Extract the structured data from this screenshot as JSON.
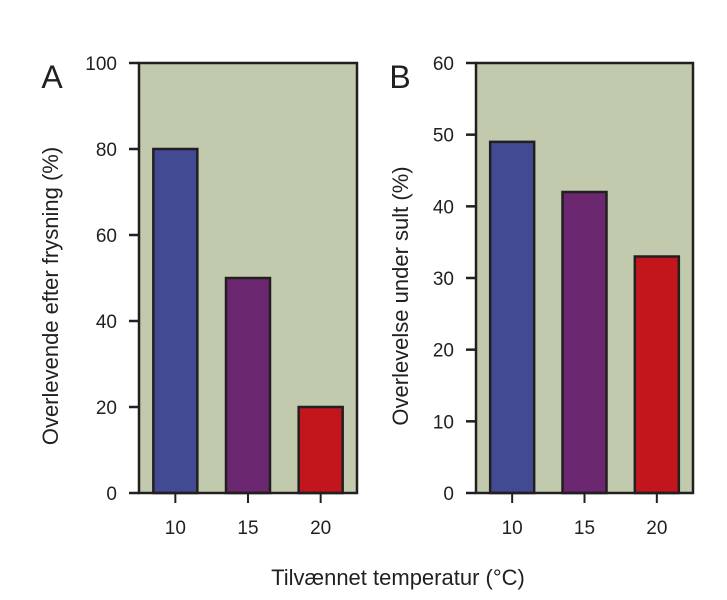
{
  "chart_data": [
    {
      "type": "bar",
      "panel_label": "A",
      "title": "",
      "categories": [
        "10",
        "15",
        "20"
      ],
      "values": [
        80,
        50,
        20
      ],
      "bar_colors": [
        "#414a93",
        "#6b2770",
        "#c3161c"
      ],
      "xlabel": "Tilvænnet temperatur (°C)",
      "ylabel": "Overlevende efter frysning (%)",
      "ylim": [
        0,
        100
      ],
      "yticks": [
        "0",
        "20",
        "40",
        "60",
        "80",
        "100"
      ],
      "ytick_values": [
        0,
        20,
        40,
        60,
        80,
        100
      ],
      "grid": false,
      "background": "#c1caad"
    },
    {
      "type": "bar",
      "panel_label": "B",
      "title": "",
      "categories": [
        "10",
        "15",
        "20"
      ],
      "values": [
        49,
        42,
        33
      ],
      "bar_colors": [
        "#414a93",
        "#6b2770",
        "#c3161c"
      ],
      "xlabel": "Tilvænnet temperatur (°C)",
      "ylabel": "Overlevelse under sult (%)",
      "ylim": [
        0,
        60
      ],
      "yticks": [
        "0",
        "10",
        "20",
        "30",
        "40",
        "50",
        "60"
      ],
      "ytick_values": [
        0,
        10,
        20,
        30,
        40,
        50,
        60
      ],
      "grid": false,
      "background": "#c1caad"
    }
  ],
  "shared_xlabel": "Tilvænnet temperatur (°C)"
}
